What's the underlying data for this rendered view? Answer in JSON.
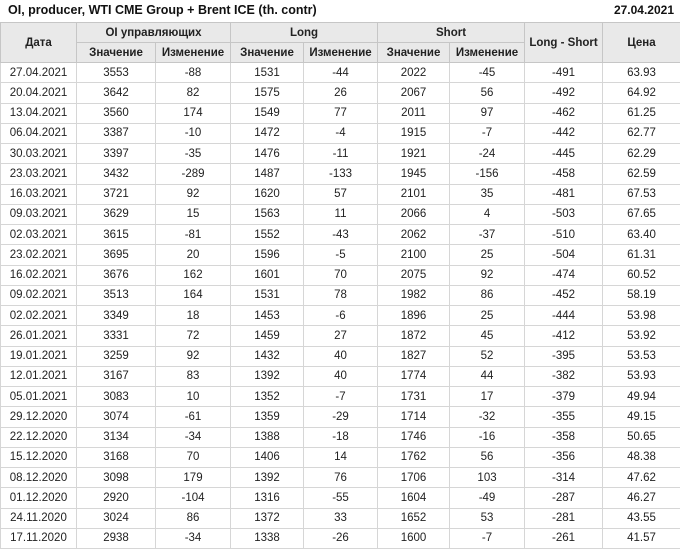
{
  "page": {
    "title": "OI, producer, WTI CME Group + Brent ICE (th. contr)",
    "report_date": "27.04.2021"
  },
  "colors": {
    "positive": "#169416",
    "negative": "#cc2a2a",
    "header_bg": "#e9e9e9"
  },
  "table": {
    "header_row1": [
      {
        "label": "Дата",
        "rowspan": 2,
        "colspan": 1
      },
      {
        "label": "OI управляющих",
        "rowspan": 1,
        "colspan": 2
      },
      {
        "label": "Long",
        "rowspan": 1,
        "colspan": 2
      },
      {
        "label": "Short",
        "rowspan": 1,
        "colspan": 2
      },
      {
        "label": "Long - Short",
        "rowspan": 2,
        "colspan": 1
      },
      {
        "label": "Цена",
        "rowspan": 2,
        "colspan": 1
      }
    ],
    "header_row2": [
      "Значение",
      "Изменение",
      "Значение",
      "Изменение",
      "Значение",
      "Изменение"
    ],
    "rows": [
      [
        "27.04.2021",
        "3553",
        "-88",
        "1531",
        "-44",
        "2022",
        "-45",
        "-491",
        "63.93"
      ],
      [
        "20.04.2021",
        "3642",
        "82",
        "1575",
        "26",
        "2067",
        "56",
        "-492",
        "64.92"
      ],
      [
        "13.04.2021",
        "3560",
        "174",
        "1549",
        "77",
        "2011",
        "97",
        "-462",
        "61.25"
      ],
      [
        "06.04.2021",
        "3387",
        "-10",
        "1472",
        "-4",
        "1915",
        "-7",
        "-442",
        "62.77"
      ],
      [
        "30.03.2021",
        "3397",
        "-35",
        "1476",
        "-11",
        "1921",
        "-24",
        "-445",
        "62.29"
      ],
      [
        "23.03.2021",
        "3432",
        "-289",
        "1487",
        "-133",
        "1945",
        "-156",
        "-458",
        "62.59"
      ],
      [
        "16.03.2021",
        "3721",
        "92",
        "1620",
        "57",
        "2101",
        "35",
        "-481",
        "67.53"
      ],
      [
        "09.03.2021",
        "3629",
        "15",
        "1563",
        "11",
        "2066",
        "4",
        "-503",
        "67.65"
      ],
      [
        "02.03.2021",
        "3615",
        "-81",
        "1552",
        "-43",
        "2062",
        "-37",
        "-510",
        "63.40"
      ],
      [
        "23.02.2021",
        "3695",
        "20",
        "1596",
        "-5",
        "2100",
        "25",
        "-504",
        "61.31"
      ],
      [
        "16.02.2021",
        "3676",
        "162",
        "1601",
        "70",
        "2075",
        "92",
        "-474",
        "60.52"
      ],
      [
        "09.02.2021",
        "3513",
        "164",
        "1531",
        "78",
        "1982",
        "86",
        "-452",
        "58.19"
      ],
      [
        "02.02.2021",
        "3349",
        "18",
        "1453",
        "-6",
        "1896",
        "25",
        "-444",
        "53.98"
      ],
      [
        "26.01.2021",
        "3331",
        "72",
        "1459",
        "27",
        "1872",
        "45",
        "-412",
        "53.92"
      ],
      [
        "19.01.2021",
        "3259",
        "92",
        "1432",
        "40",
        "1827",
        "52",
        "-395",
        "53.53"
      ],
      [
        "12.01.2021",
        "3167",
        "83",
        "1392",
        "40",
        "1774",
        "44",
        "-382",
        "53.93"
      ],
      [
        "05.01.2021",
        "3083",
        "10",
        "1352",
        "-7",
        "1731",
        "17",
        "-379",
        "49.94"
      ],
      [
        "29.12.2020",
        "3074",
        "-61",
        "1359",
        "-29",
        "1714",
        "-32",
        "-355",
        "49.15"
      ],
      [
        "22.12.2020",
        "3134",
        "-34",
        "1388",
        "-18",
        "1746",
        "-16",
        "-358",
        "50.65"
      ],
      [
        "15.12.2020",
        "3168",
        "70",
        "1406",
        "14",
        "1762",
        "56",
        "-356",
        "48.38"
      ],
      [
        "08.12.2020",
        "3098",
        "179",
        "1392",
        "76",
        "1706",
        "103",
        "-314",
        "47.62"
      ],
      [
        "01.12.2020",
        "2920",
        "-104",
        "1316",
        "-55",
        "1604",
        "-49",
        "-287",
        "46.27"
      ],
      [
        "24.11.2020",
        "3024",
        "86",
        "1372",
        "33",
        "1652",
        "53",
        "-281",
        "43.55"
      ],
      [
        "17.11.2020",
        "2938",
        "-34",
        "1338",
        "-26",
        "1600",
        "-7",
        "-261",
        "41.57"
      ]
    ]
  }
}
